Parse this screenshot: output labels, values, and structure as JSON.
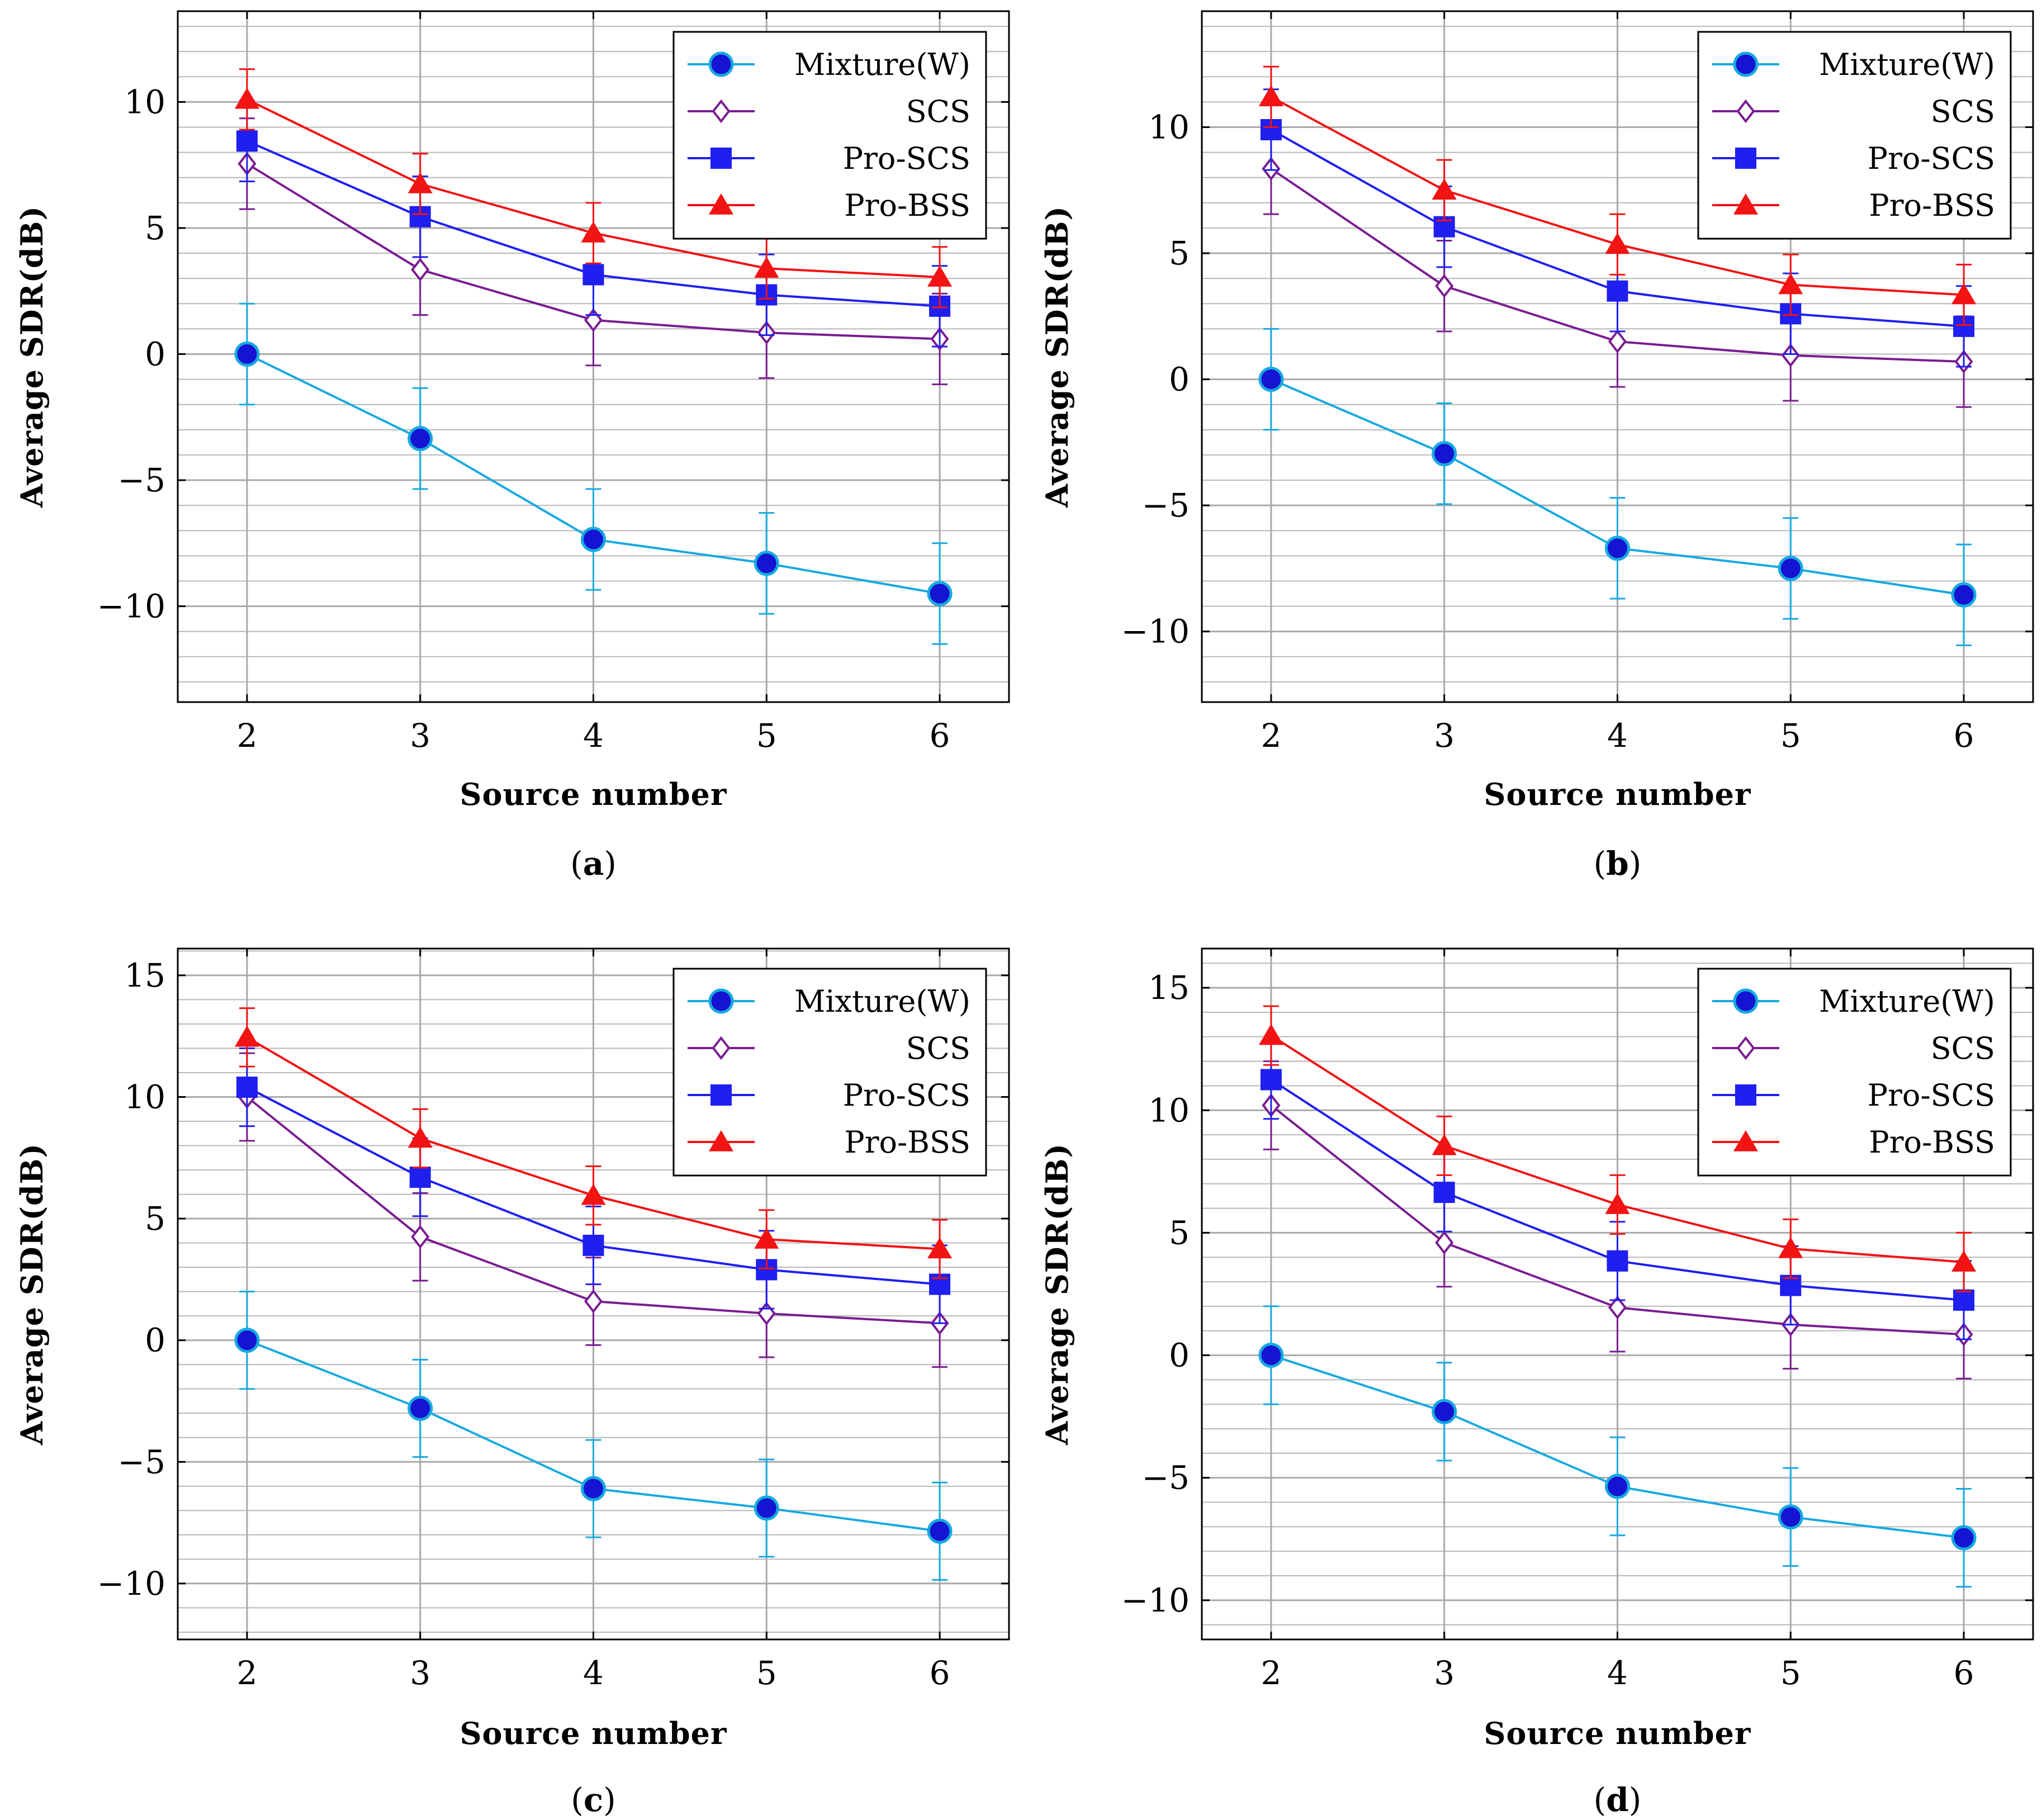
{
  "colors": {
    "Mixture(W)": "#17a9e0",
    "SCS": "#7a1c92",
    "Pro-SCS": "#1f1ff0",
    "Pro-BSS": "#f21313",
    "marker_fill_mixture": "#1414d2",
    "grid": "#b8b8b8"
  },
  "chart_data": [
    {
      "type": "line",
      "caption": "a",
      "xlabel": "Source number",
      "ylabel": "Average SDR(dB)",
      "x": [
        2,
        3,
        4,
        5,
        6
      ],
      "xlim": [
        1.6,
        6.4
      ],
      "ylim": [
        -13.8,
        13.6
      ],
      "yticks": [
        -10,
        -5,
        0,
        5,
        10
      ],
      "ytick_labels": [
        "−10",
        "−5",
        "0",
        "5",
        "10"
      ],
      "xtick_labels": [
        "2",
        "3",
        "4",
        "5",
        "6"
      ],
      "minor_y_step": 1,
      "legend_position": "top-right",
      "series": [
        {
          "name": "Mixture(W)",
          "marker": "circle",
          "values": [
            0.0,
            -3.35,
            -7.35,
            -8.3,
            -9.5
          ],
          "err": [
            2.0,
            2.0,
            2.0,
            2.0,
            2.0
          ]
        },
        {
          "name": "SCS",
          "marker": "diamond",
          "values": [
            7.55,
            3.35,
            1.35,
            0.85,
            0.6
          ],
          "err": [
            1.8,
            1.8,
            1.8,
            1.8,
            1.8
          ]
        },
        {
          "name": "Pro-SCS",
          "marker": "square",
          "values": [
            8.45,
            5.45,
            3.15,
            2.35,
            1.9
          ],
          "err": [
            1.6,
            1.6,
            1.6,
            1.6,
            1.6
          ]
        },
        {
          "name": "Pro-BSS",
          "marker": "triangle",
          "values": [
            10.1,
            6.75,
            4.8,
            3.4,
            3.05
          ],
          "err": [
            1.2,
            1.2,
            1.2,
            1.2,
            1.2
          ]
        }
      ]
    },
    {
      "type": "line",
      "caption": "b",
      "xlabel": "Source number",
      "ylabel": "Average SDR(dB)",
      "x": [
        2,
        3,
        4,
        5,
        6
      ],
      "xlim": [
        1.6,
        6.4
      ],
      "ylim": [
        -12.8,
        14.6
      ],
      "yticks": [
        -10,
        -5,
        0,
        5,
        10
      ],
      "ytick_labels": [
        "−10",
        "−5",
        "0",
        "5",
        "10"
      ],
      "xtick_labels": [
        "2",
        "3",
        "4",
        "5",
        "6"
      ],
      "minor_y_step": 1,
      "legend_position": "top-right",
      "series": [
        {
          "name": "Mixture(W)",
          "marker": "circle",
          "values": [
            0.0,
            -2.95,
            -6.7,
            -7.5,
            -8.55
          ],
          "err": [
            2.0,
            2.0,
            2.0,
            2.0,
            2.0
          ]
        },
        {
          "name": "SCS",
          "marker": "diamond",
          "values": [
            8.35,
            3.7,
            1.5,
            0.95,
            0.7
          ],
          "err": [
            1.8,
            1.8,
            1.8,
            1.8,
            1.8
          ]
        },
        {
          "name": "Pro-SCS",
          "marker": "square",
          "values": [
            9.9,
            6.05,
            3.5,
            2.6,
            2.1
          ],
          "err": [
            1.6,
            1.6,
            1.6,
            1.6,
            1.6
          ]
        },
        {
          "name": "Pro-BSS",
          "marker": "triangle",
          "values": [
            11.2,
            7.5,
            5.35,
            3.75,
            3.35
          ],
          "err": [
            1.2,
            1.2,
            1.2,
            1.2,
            1.2
          ]
        }
      ]
    },
    {
      "type": "line",
      "caption": "c",
      "xlabel": "Source number",
      "ylabel": "Average SDR(dB)",
      "x": [
        2,
        3,
        4,
        5,
        6
      ],
      "xlim": [
        1.6,
        6.4
      ],
      "ylim": [
        -12.3,
        16.1
      ],
      "yticks": [
        -10,
        -5,
        0,
        5,
        10,
        15
      ],
      "ytick_labels": [
        "−10",
        "−5",
        "0",
        "5",
        "10",
        "15"
      ],
      "xtick_labels": [
        "2",
        "3",
        "4",
        "5",
        "6"
      ],
      "minor_y_step": 1,
      "legend_position": "top-right",
      "series": [
        {
          "name": "Mixture(W)",
          "marker": "circle",
          "values": [
            0.0,
            -2.8,
            -6.1,
            -6.9,
            -7.85
          ],
          "err": [
            2.0,
            2.0,
            2.0,
            2.0,
            2.0
          ]
        },
        {
          "name": "SCS",
          "marker": "diamond",
          "values": [
            10.0,
            4.25,
            1.6,
            1.1,
            0.7
          ],
          "err": [
            1.8,
            1.8,
            1.8,
            1.8,
            1.8
          ]
        },
        {
          "name": "Pro-SCS",
          "marker": "square",
          "values": [
            10.4,
            6.7,
            3.9,
            2.9,
            2.3
          ],
          "err": [
            1.6,
            1.6,
            1.6,
            1.6,
            1.6
          ]
        },
        {
          "name": "Pro-BSS",
          "marker": "triangle",
          "values": [
            12.45,
            8.3,
            5.95,
            4.15,
            3.75
          ],
          "err": [
            1.2,
            1.2,
            1.2,
            1.2,
            1.2
          ]
        }
      ]
    },
    {
      "type": "line",
      "caption": "d",
      "xlabel": "Source number",
      "ylabel": "Average SDR(dB)",
      "x": [
        2,
        3,
        4,
        5,
        6
      ],
      "xlim": [
        1.6,
        6.4
      ],
      "ylim": [
        -11.6,
        16.6
      ],
      "yticks": [
        -10,
        -5,
        0,
        5,
        10,
        15
      ],
      "ytick_labels": [
        "−10",
        "−5",
        "0",
        "5",
        "10",
        "15"
      ],
      "xtick_labels": [
        "2",
        "3",
        "4",
        "5",
        "6"
      ],
      "minor_y_step": 1,
      "legend_position": "top-right",
      "series": [
        {
          "name": "Mixture(W)",
          "marker": "circle",
          "values": [
            0.0,
            -2.3,
            -5.35,
            -6.6,
            -7.45
          ],
          "err": [
            2.0,
            2.0,
            2.0,
            2.0,
            2.0
          ]
        },
        {
          "name": "SCS",
          "marker": "diamond",
          "values": [
            10.2,
            4.6,
            1.95,
            1.25,
            0.85
          ],
          "err": [
            1.8,
            1.8,
            1.8,
            1.8,
            1.8
          ]
        },
        {
          "name": "Pro-SCS",
          "marker": "square",
          "values": [
            11.25,
            6.65,
            3.85,
            2.85,
            2.25
          ],
          "err": [
            1.6,
            1.6,
            1.6,
            1.6,
            1.6
          ]
        },
        {
          "name": "Pro-BSS",
          "marker": "triangle",
          "values": [
            13.05,
            8.55,
            6.15,
            4.35,
            3.8
          ],
          "err": [
            1.2,
            1.2,
            1.2,
            1.2,
            1.2
          ]
        }
      ]
    }
  ]
}
